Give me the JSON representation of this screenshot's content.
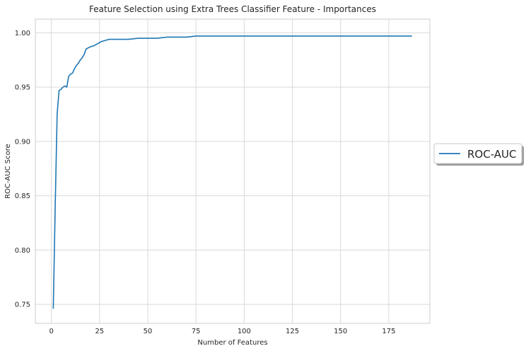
{
  "chart_data": {
    "type": "line",
    "title": "Feature Selection using Extra Trees Classifier Feature - Importances",
    "xlabel": "Number of Features",
    "ylabel": "ROC-AUC Score",
    "xlim": [
      -8.3,
      196.3
    ],
    "ylim": [
      0.7325,
      1.0126
    ],
    "xticks": [
      0,
      25,
      50,
      75,
      100,
      125,
      150,
      175
    ],
    "yticks": [
      0.75,
      0.8,
      0.85,
      0.9,
      0.95,
      1.0
    ],
    "xtick_labels": [
      "0",
      "25",
      "50",
      "75",
      "100",
      "125",
      "150",
      "175"
    ],
    "ytick_labels": [
      "0.75",
      "0.80",
      "0.85",
      "0.90",
      "0.95",
      "1.00"
    ],
    "grid": true,
    "legend_position": "outside-right",
    "series": [
      {
        "name": "ROC-AUC",
        "color": "#1f77b4",
        "x": [
          1,
          2,
          3,
          4,
          5,
          6,
          7,
          8,
          9,
          10,
          11,
          12,
          13,
          14,
          15,
          16,
          17,
          18,
          19,
          20,
          22,
          24,
          26,
          28,
          30,
          35,
          40,
          45,
          50,
          55,
          60,
          65,
          70,
          75,
          80,
          90,
          100,
          110,
          120,
          130,
          140,
          150,
          160,
          170,
          180,
          187
        ],
        "y": [
          0.746,
          0.84,
          0.925,
          0.947,
          0.948,
          0.95,
          0.951,
          0.95,
          0.96,
          0.962,
          0.963,
          0.967,
          0.97,
          0.972,
          0.975,
          0.977,
          0.98,
          0.985,
          0.986,
          0.987,
          0.988,
          0.99,
          0.992,
          0.993,
          0.994,
          0.994,
          0.994,
          0.995,
          0.995,
          0.995,
          0.996,
          0.996,
          0.996,
          0.997,
          0.997,
          0.997,
          0.997,
          0.997,
          0.997,
          0.997,
          0.997,
          0.997,
          0.997,
          0.997,
          0.997,
          0.997
        ]
      }
    ]
  }
}
